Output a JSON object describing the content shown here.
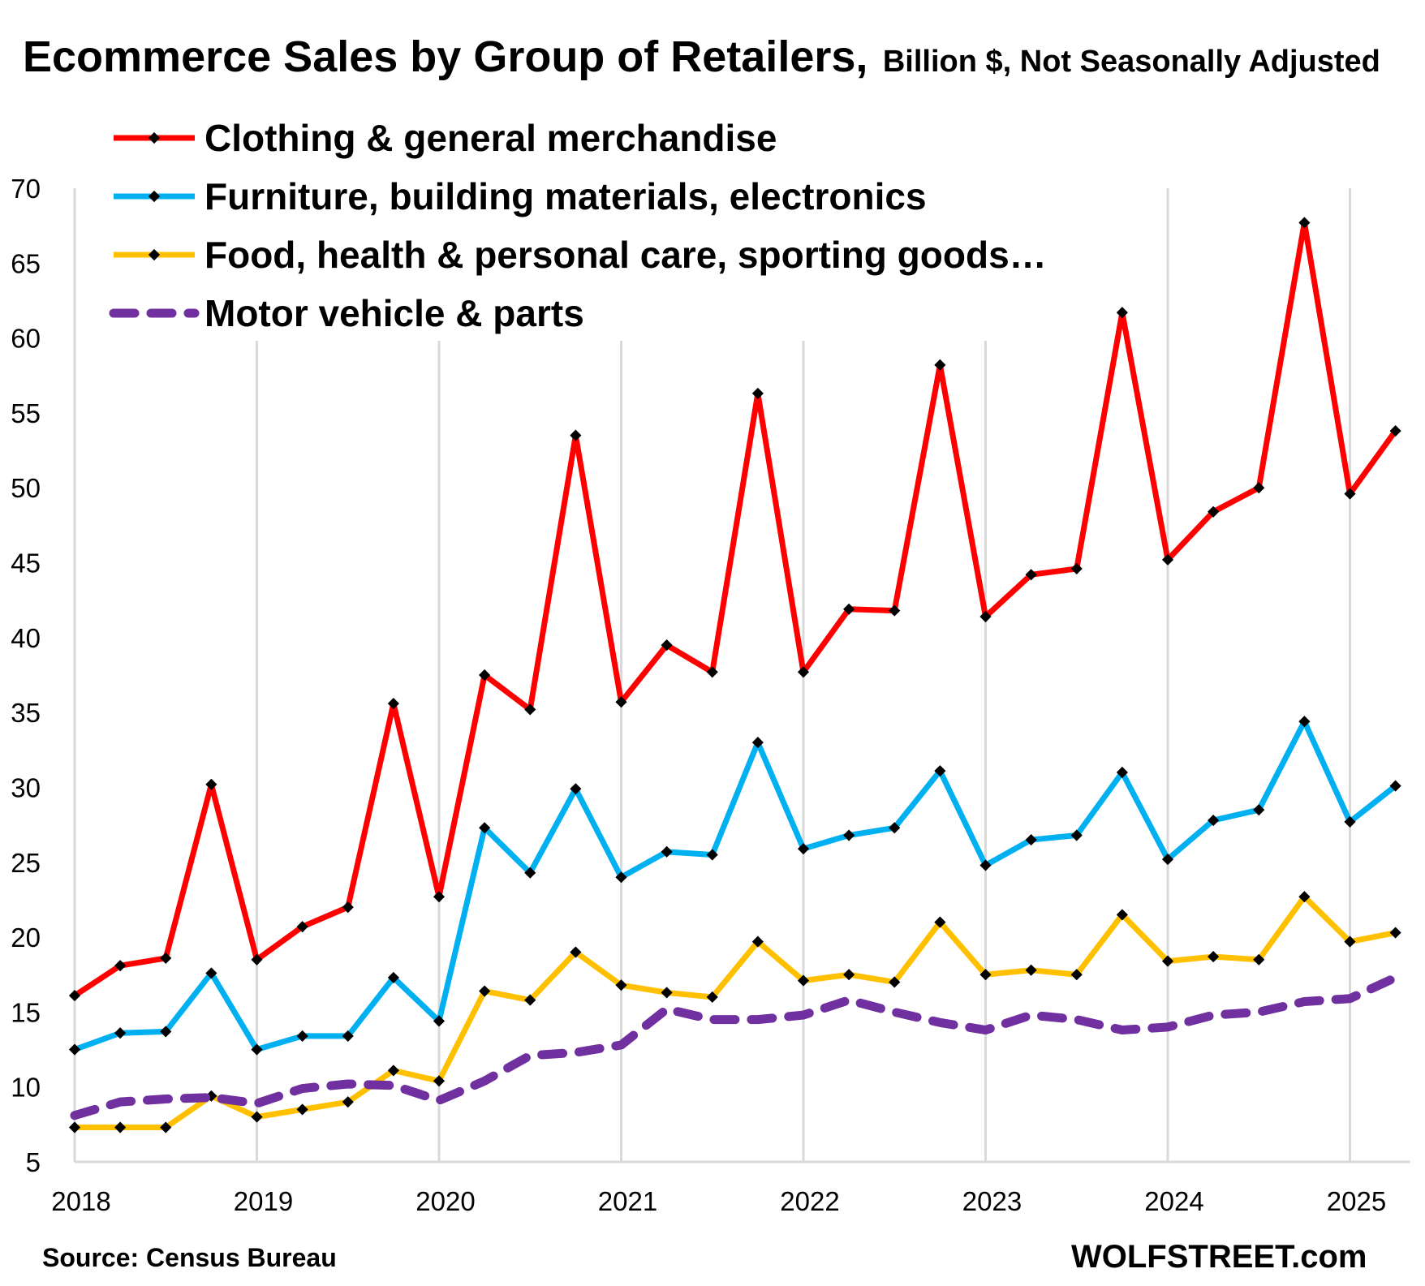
{
  "chart_data": {
    "type": "line",
    "title": "Ecommerce Sales by Group of Retailers,",
    "subtitle": "Billion $, Not Seasonally Adjusted",
    "xlabel": "",
    "ylabel": "",
    "ylim": [
      5,
      70
    ],
    "y_ticks": [
      "5",
      "10",
      "15",
      "20",
      "25",
      "30",
      "35",
      "40",
      "45",
      "50",
      "55",
      "60",
      "65",
      "70"
    ],
    "x_ticks": [
      "2018",
      "2019",
      "2020",
      "2021",
      "2022",
      "2023",
      "2024",
      "2025"
    ],
    "grid": "vertical",
    "legend": "top-left",
    "x": [
      "2018 Q1",
      "2018 Q2",
      "2018 Q3",
      "2018 Q4",
      "2019 Q1",
      "2019 Q2",
      "2019 Q3",
      "2019 Q4",
      "2020 Q1",
      "2020 Q2",
      "2020 Q3",
      "2020 Q4",
      "2021 Q1",
      "2021 Q2",
      "2021 Q3",
      "2021 Q4",
      "2022 Q1",
      "2022 Q2",
      "2022 Q3",
      "2022 Q4",
      "2023 Q1",
      "2023 Q2",
      "2023 Q3",
      "2023 Q4",
      "2024 Q1",
      "2024 Q2",
      "2024 Q3",
      "2024 Q4",
      "2025 Q1",
      "2025 Q2"
    ],
    "series": [
      {
        "name": "Clothing & general merchandise",
        "color": "#ff0000",
        "style": "solid",
        "values": [
          16.1,
          18.1,
          18.6,
          30.2,
          18.5,
          20.7,
          22.0,
          35.6,
          22.7,
          37.5,
          35.2,
          53.5,
          35.7,
          39.5,
          37.7,
          56.3,
          37.7,
          41.9,
          41.8,
          58.2,
          41.4,
          44.2,
          44.6,
          61.7,
          45.2,
          48.4,
          50.0,
          67.7,
          49.6,
          53.8
        ]
      },
      {
        "name": "Furniture, building materials, electronics",
        "color": "#00b0f0",
        "style": "solid",
        "values": [
          12.5,
          13.6,
          13.7,
          17.6,
          12.5,
          13.4,
          13.4,
          17.3,
          14.4,
          27.3,
          24.3,
          29.9,
          24.0,
          25.7,
          25.5,
          33.0,
          25.9,
          26.8,
          27.3,
          31.1,
          24.8,
          26.5,
          26.8,
          31.0,
          25.2,
          27.8,
          28.5,
          34.4,
          27.7,
          30.1
        ]
      },
      {
        "name": "Food, health & personal care, sporting goods…",
        "color": "#ffc000",
        "style": "solid",
        "values": [
          7.3,
          7.3,
          7.3,
          9.4,
          8.0,
          8.5,
          9.0,
          11.1,
          10.4,
          16.4,
          15.8,
          19.0,
          16.8,
          16.3,
          16.0,
          19.7,
          17.1,
          17.5,
          17.0,
          21.0,
          17.5,
          17.8,
          17.5,
          21.5,
          18.4,
          18.7,
          18.5,
          22.7,
          19.7,
          20.3
        ]
      },
      {
        "name": "Motor vehicle & parts",
        "color": "#7030a0",
        "style": "dashed",
        "values": [
          8.1,
          9.0,
          9.2,
          9.3,
          8.9,
          9.9,
          10.2,
          10.1,
          9.1,
          10.4,
          12.1,
          12.3,
          12.8,
          15.2,
          14.5,
          14.5,
          14.8,
          15.8,
          15.0,
          14.3,
          13.8,
          14.8,
          14.5,
          13.8,
          14.0,
          14.8,
          15.0,
          15.7,
          15.9,
          17.3
        ]
      }
    ]
  },
  "footer": {
    "source": "Source: Census Bureau",
    "brand": "WOLFSTREET.com"
  }
}
